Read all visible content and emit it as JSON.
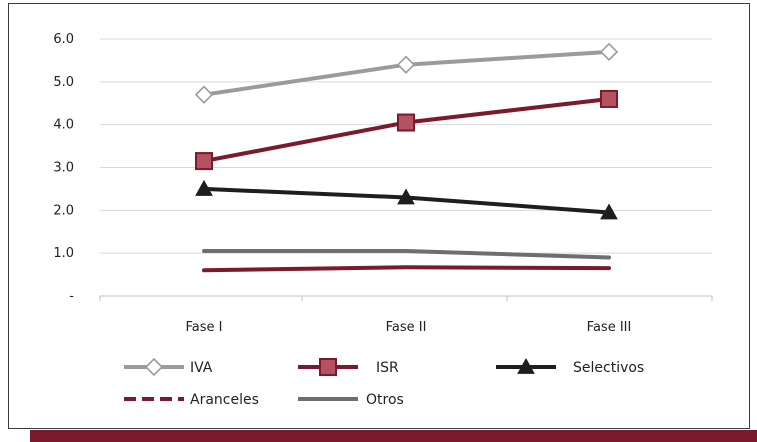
{
  "chart_data": {
    "type": "line",
    "title": "",
    "xlabel": "",
    "ylabel": "",
    "categories": [
      "Fase I",
      "Fase II",
      "Fase III"
    ],
    "ylim": [
      0,
      6
    ],
    "yticks": [
      "-",
      "1.0",
      "2.0",
      "3.0",
      "4.0",
      "5.0",
      "6.0"
    ],
    "grid": true,
    "legend_position": "bottom",
    "series": [
      {
        "name": "IVA",
        "values": [
          4.7,
          5.4,
          5.7
        ],
        "color": "#9b9b9b",
        "marker": "diamond-open"
      },
      {
        "name": "ISR",
        "values": [
          3.15,
          4.05,
          4.6
        ],
        "color": "#7b1a2c",
        "marker": "square"
      },
      {
        "name": "Selectivos",
        "values": [
          2.5,
          2.3,
          1.95
        ],
        "color": "#1e1e1e",
        "marker": "triangle"
      },
      {
        "name": "Aranceles",
        "values": [
          0.6,
          0.67,
          0.65
        ],
        "color": "#7b1a2c",
        "marker": "none",
        "dash": true
      },
      {
        "name": "Otros",
        "values": [
          1.05,
          1.05,
          0.9
        ],
        "color": "#6e6e6e",
        "marker": "none"
      }
    ]
  }
}
